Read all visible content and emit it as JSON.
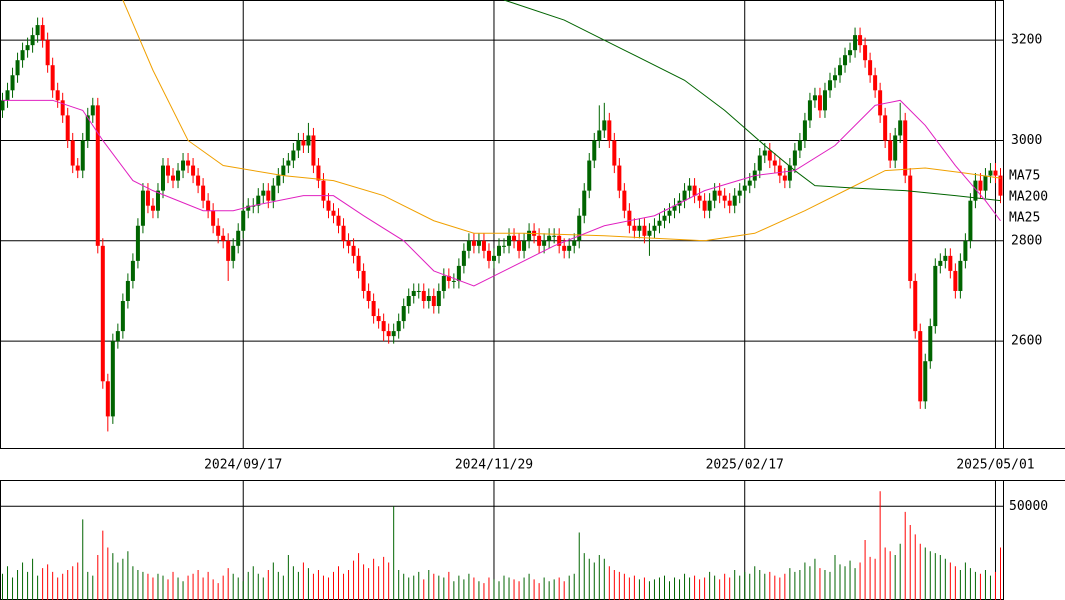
{
  "chart_data": {
    "type": "candlestick",
    "categories": [
      null,
      null,
      null,
      null,
      null,
      null,
      null,
      null,
      null,
      null,
      null,
      null,
      null,
      null,
      null,
      null,
      null,
      null,
      null,
      null,
      null,
      null,
      null,
      null,
      null,
      null,
      null,
      null,
      null,
      null,
      null,
      null,
      null,
      null,
      null,
      null,
      null,
      null,
      null,
      null,
      null,
      null,
      null,
      null,
      null,
      null,
      null,
      null,
      "2024/09/17",
      null,
      null,
      null,
      null,
      null,
      null,
      null,
      null,
      null,
      null,
      null,
      null,
      null,
      null,
      null,
      null,
      null,
      null,
      null,
      null,
      null,
      null,
      null,
      null,
      null,
      null,
      null,
      null,
      null,
      null,
      null,
      null,
      null,
      null,
      null,
      null,
      null,
      null,
      null,
      null,
      null,
      null,
      null,
      null,
      null,
      null,
      null,
      null,
      null,
      "2024/11/29",
      null,
      null,
      null,
      null,
      null,
      null,
      null,
      null,
      null,
      null,
      null,
      null,
      null,
      null,
      null,
      null,
      null,
      null,
      null,
      null,
      null,
      null,
      null,
      null,
      null,
      null,
      null,
      null,
      null,
      null,
      null,
      null,
      null,
      null,
      null,
      null,
      null,
      null,
      null,
      null,
      null,
      null,
      null,
      null,
      null,
      null,
      null,
      null,
      null,
      "2025/02/17",
      null,
      null,
      null,
      null,
      null,
      null,
      null,
      null,
      null,
      null,
      null,
      null,
      null,
      null,
      null,
      null,
      null,
      null,
      null,
      null,
      null,
      null,
      null,
      null,
      null,
      null,
      null,
      null,
      null,
      null,
      null,
      null,
      null,
      null,
      null,
      null,
      null,
      null,
      null,
      null,
      null,
      null,
      null,
      null,
      null,
      null,
      null,
      null,
      null,
      "2025/05/01",
      null
    ],
    "open": [
      3060,
      3080,
      3100,
      3130,
      3160,
      3180,
      3190,
      3210,
      3230,
      3200,
      3150,
      3100,
      3080,
      3050,
      3000,
      2950,
      2940,
      3000,
      3050,
      3070,
      2790,
      2520,
      2450,
      2600,
      2620,
      2680,
      2720,
      2760,
      2830,
      2900,
      2870,
      2860,
      2900,
      2950,
      2930,
      2920,
      2940,
      2960,
      2950,
      2930,
      2910,
      2880,
      2860,
      2830,
      2810,
      2800,
      2760,
      2790,
      2820,
      2860,
      2870,
      2870,
      2890,
      2900,
      2880,
      2910,
      2930,
      2950,
      2960,
      2980,
      3000,
      2990,
      3010,
      2950,
      2920,
      2880,
      2860,
      2850,
      2830,
      2800,
      2790,
      2770,
      2740,
      2700,
      2680,
      2650,
      2640,
      2620,
      2610,
      2620,
      2640,
      2670,
      2690,
      2700,
      2700,
      2680,
      2690,
      2670,
      2700,
      2730,
      2720,
      2720,
      2750,
      2780,
      2800,
      2790,
      2800,
      2780,
      2760,
      2770,
      2790,
      2790,
      2810,
      2800,
      2780,
      2800,
      2820,
      2810,
      2790,
      2800,
      2810,
      2810,
      2790,
      2780,
      2790,
      2800,
      2850,
      2900,
      2960,
      3000,
      3020,
      3040,
      3000,
      2950,
      2900,
      2860,
      2830,
      2820,
      2830,
      2810,
      2820,
      2830,
      2840,
      2850,
      2860,
      2870,
      2880,
      2900,
      2910,
      2890,
      2880,
      2860,
      2880,
      2900,
      2890,
      2880,
      2870,
      2890,
      2900,
      2910,
      2920,
      2940,
      2970,
      2980,
      2960,
      2950,
      2930,
      2920,
      2950,
      2980,
      3000,
      3040,
      3080,
      3090,
      3060,
      3100,
      3120,
      3130,
      3150,
      3170,
      3180,
      3210,
      3190,
      3160,
      3130,
      3100,
      3050,
      3000,
      2960,
      3010,
      3040,
      2930,
      2720,
      2620,
      2480,
      2560,
      2630,
      2750,
      2760,
      2770,
      2740,
      2700,
      2760,
      2800,
      2880,
      2920,
      2900,
      2930,
      2940,
      2930
    ],
    "high": [
      3095,
      3115,
      3145,
      3175,
      3195,
      3205,
      3225,
      3245,
      3245,
      3215,
      3165,
      3115,
      3095,
      3065,
      3015,
      2965,
      3015,
      3065,
      3085,
      3085,
      2805,
      2535,
      2615,
      2635,
      2695,
      2735,
      2775,
      2845,
      2915,
      2915,
      2885,
      2915,
      2965,
      2965,
      2945,
      2955,
      2975,
      2975,
      2965,
      2945,
      2925,
      2895,
      2875,
      2845,
      2825,
      2815,
      2805,
      2835,
      2875,
      2885,
      2885,
      2905,
      2915,
      2915,
      2925,
      2945,
      2965,
      2975,
      2995,
      3015,
      3015,
      3035,
      3025,
      2965,
      2935,
      2895,
      2875,
      2865,
      2845,
      2815,
      2805,
      2785,
      2755,
      2715,
      2695,
      2665,
      2655,
      2635,
      2635,
      2655,
      2685,
      2705,
      2715,
      2715,
      2715,
      2705,
      2705,
      2715,
      2745,
      2745,
      2735,
      2765,
      2795,
      2815,
      2815,
      2815,
      2815,
      2795,
      2785,
      2805,
      2805,
      2825,
      2825,
      2815,
      2815,
      2835,
      2835,
      2825,
      2815,
      2825,
      2825,
      2825,
      2805,
      2805,
      2815,
      2865,
      2915,
      2975,
      3015,
      3070,
      3075,
      3055,
      3015,
      2965,
      2915,
      2875,
      2845,
      2845,
      2845,
      2835,
      2845,
      2855,
      2865,
      2875,
      2885,
      2895,
      2915,
      2925,
      2925,
      2905,
      2895,
      2895,
      2915,
      2915,
      2905,
      2895,
      2905,
      2915,
      2925,
      2935,
      2955,
      2985,
      2995,
      2995,
      2975,
      2965,
      2945,
      2965,
      2995,
      3015,
      3055,
      3095,
      3105,
      3105,
      3115,
      3135,
      3145,
      3165,
      3185,
      3195,
      3225,
      3225,
      3205,
      3175,
      3145,
      3115,
      3065,
      3015,
      3025,
      3075,
      3055,
      2945,
      2735,
      2635,
      2575,
      2645,
      2765,
      2775,
      2785,
      2785,
      2755,
      2775,
      2815,
      2895,
      2935,
      2935,
      2945,
      2955,
      2955,
      2945
    ],
    "low": [
      3045,
      3065,
      3085,
      3115,
      3145,
      3165,
      3175,
      3195,
      3185,
      3135,
      3085,
      3065,
      3035,
      2985,
      2935,
      2925,
      2925,
      2985,
      3035,
      2775,
      2505,
      2420,
      2435,
      2585,
      2605,
      2665,
      2705,
      2745,
      2815,
      2855,
      2845,
      2845,
      2885,
      2915,
      2905,
      2905,
      2925,
      2935,
      2915,
      2895,
      2865,
      2845,
      2815,
      2795,
      2785,
      2720,
      2745,
      2775,
      2805,
      2845,
      2855,
      2855,
      2875,
      2865,
      2865,
      2895,
      2915,
      2935,
      2945,
      2965,
      2975,
      2975,
      2935,
      2905,
      2865,
      2845,
      2835,
      2815,
      2785,
      2775,
      2755,
      2725,
      2685,
      2665,
      2635,
      2625,
      2600,
      2595,
      2595,
      2605,
      2625,
      2655,
      2675,
      2685,
      2665,
      2665,
      2655,
      2655,
      2685,
      2705,
      2705,
      2705,
      2735,
      2765,
      2775,
      2775,
      2765,
      2745,
      2745,
      2755,
      2775,
      2775,
      2785,
      2765,
      2765,
      2785,
      2795,
      2775,
      2775,
      2785,
      2795,
      2775,
      2765,
      2765,
      2775,
      2785,
      2835,
      2885,
      2945,
      2985,
      3005,
      2985,
      2935,
      2885,
      2845,
      2815,
      2805,
      2805,
      2795,
      2770,
      2805,
      2815,
      2825,
      2835,
      2845,
      2855,
      2865,
      2885,
      2875,
      2865,
      2845,
      2845,
      2865,
      2875,
      2865,
      2855,
      2855,
      2875,
      2885,
      2895,
      2905,
      2925,
      2955,
      2945,
      2935,
      2915,
      2905,
      2905,
      2935,
      2965,
      2985,
      3025,
      3065,
      3045,
      3045,
      3085,
      3105,
      3115,
      3135,
      3155,
      3165,
      3175,
      3145,
      3115,
      3085,
      3035,
      2985,
      2945,
      2945,
      2995,
      2915,
      2705,
      2605,
      2465,
      2465,
      2545,
      2615,
      2735,
      2745,
      2725,
      2685,
      2685,
      2745,
      2785,
      2865,
      2885,
      2885,
      2915,
      2915,
      2875
    ],
    "close": [
      3080,
      3100,
      3130,
      3160,
      3180,
      3190,
      3210,
      3230,
      3200,
      3150,
      3100,
      3080,
      3050,
      3000,
      2950,
      2940,
      3000,
      3050,
      3070,
      2790,
      2520,
      2450,
      2600,
      2620,
      2680,
      2720,
      2760,
      2830,
      2900,
      2870,
      2860,
      2900,
      2950,
      2930,
      2920,
      2940,
      2960,
      2950,
      2930,
      2910,
      2880,
      2860,
      2830,
      2810,
      2800,
      2760,
      2790,
      2820,
      2860,
      2870,
      2870,
      2890,
      2900,
      2880,
      2910,
      2930,
      2950,
      2960,
      2980,
      3000,
      2990,
      3010,
      2950,
      2920,
      2880,
      2860,
      2850,
      2830,
      2800,
      2790,
      2770,
      2740,
      2700,
      2680,
      2650,
      2640,
      2620,
      2610,
      2620,
      2640,
      2670,
      2690,
      2700,
      2700,
      2680,
      2690,
      2670,
      2700,
      2730,
      2720,
      2720,
      2750,
      2780,
      2800,
      2790,
      2800,
      2780,
      2760,
      2770,
      2790,
      2790,
      2810,
      2800,
      2780,
      2800,
      2820,
      2810,
      2790,
      2800,
      2810,
      2810,
      2790,
      2780,
      2790,
      2800,
      2850,
      2900,
      2960,
      3000,
      3020,
      3040,
      3000,
      2950,
      2900,
      2860,
      2830,
      2820,
      2830,
      2810,
      2820,
      2830,
      2840,
      2850,
      2860,
      2870,
      2880,
      2900,
      2910,
      2890,
      2880,
      2860,
      2880,
      2900,
      2890,
      2880,
      2870,
      2890,
      2900,
      2910,
      2920,
      2940,
      2970,
      2980,
      2960,
      2950,
      2930,
      2920,
      2950,
      2980,
      3000,
      3040,
      3080,
      3090,
      3060,
      3100,
      3120,
      3130,
      3150,
      3170,
      3180,
      3210,
      3190,
      3160,
      3130,
      3100,
      3050,
      3000,
      2960,
      3010,
      3040,
      2930,
      2720,
      2620,
      2480,
      2560,
      2630,
      2750,
      2760,
      2770,
      2740,
      2700,
      2760,
      2800,
      2880,
      2920,
      2900,
      2930,
      2940,
      2930,
      2890
    ],
    "volume": [
      14000,
      18000,
      12000,
      16000,
      20000,
      15000,
      22000,
      13000,
      17000,
      19000,
      15000,
      12000,
      14000,
      16000,
      18000,
      20000,
      43000,
      15000,
      13000,
      24000,
      37000,
      28000,
      25000,
      20000,
      22000,
      26000,
      18000,
      16000,
      15000,
      14000,
      12000,
      14000,
      13000,
      11000,
      15000,
      12000,
      10000,
      13000,
      14000,
      16000,
      12000,
      15000,
      11000,
      9000,
      13000,
      17000,
      14000,
      12000,
      10000,
      15000,
      18000,
      14000,
      12000,
      16000,
      20000,
      15000,
      13000,
      24000,
      18000,
      15000,
      20000,
      17000,
      14000,
      16000,
      13000,
      12000,
      15000,
      18000,
      14000,
      16000,
      21000,
      25000,
      19000,
      17000,
      22000,
      18000,
      23000,
      20000,
      50000,
      16000,
      14000,
      12000,
      13000,
      15000,
      11000,
      16000,
      14000,
      13000,
      12000,
      15000,
      10000,
      13000,
      11000,
      14000,
      12000,
      10000,
      9000,
      12000,
      11000,
      10000,
      13000,
      12000,
      11000,
      10000,
      12000,
      14000,
      11000,
      9000,
      12000,
      10000,
      11000,
      12000,
      10000,
      13000,
      14000,
      36000,
      25000,
      22000,
      20000,
      24000,
      22000,
      18000,
      16000,
      15000,
      14000,
      12000,
      13000,
      11000,
      12000,
      10000,
      11000,
      12000,
      13000,
      10000,
      12000,
      11000,
      14000,
      12000,
      13000,
      11000,
      12000,
      15000,
      13000,
      11000,
      14000,
      12000,
      16000,
      13000,
      15000,
      14000,
      18000,
      16000,
      14000,
      15000,
      13000,
      12000,
      14000,
      17000,
      15000,
      16000,
      20000,
      18000,
      22000,
      17000,
      16000,
      15000,
      24000,
      19000,
      18000,
      21000,
      17000,
      20000,
      32000,
      23000,
      22000,
      58000,
      28000,
      26000,
      24000,
      30000,
      47000,
      40000,
      35000,
      30000,
      28000,
      26000,
      25000,
      24000,
      22000,
      20000,
      18000,
      16000,
      20000,
      17000,
      15000,
      14000,
      16000,
      13000,
      15000,
      28000
    ],
    "up_color": "#006400",
    "down_color": "#ff0000",
    "moving_averages": [
      {
        "name": "MA75",
        "color": "#f0a000",
        "x": [
          24,
          30,
          37,
          44,
          56,
          66,
          76,
          86,
          94,
          104,
          120,
          130,
          140,
          150,
          160,
          170,
          176,
          184,
          192,
          199
        ],
        "values": [
          3280,
          3140,
          3000,
          2950,
          2930,
          2920,
          2890,
          2840,
          2815,
          2815,
          2810,
          2805,
          2800,
          2815,
          2860,
          2910,
          2940,
          2945,
          2935,
          2925
        ]
      },
      {
        "name": "MA200",
        "color": "#006400",
        "x": [
          100,
          112,
          124,
          136,
          144,
          152,
          158,
          162,
          170,
          180,
          190,
          199
        ],
        "values": [
          3280,
          3240,
          3180,
          3120,
          3060,
          2990,
          2940,
          2910,
          2905,
          2900,
          2890,
          2880
        ]
      },
      {
        "name": "MA25",
        "color": "#e020c0",
        "x": [
          0,
          10,
          16,
          20,
          26,
          30,
          40,
          46,
          50,
          60,
          66,
          72,
          80,
          86,
          94,
          100,
          110,
          120,
          130,
          140,
          150,
          158,
          166,
          174,
          179,
          184,
          190,
          196,
          199
        ],
        "values": [
          3080,
          3080,
          3060,
          3000,
          2920,
          2900,
          2860,
          2860,
          2870,
          2890,
          2890,
          2850,
          2800,
          2740,
          2710,
          2740,
          2790,
          2830,
          2850,
          2900,
          2930,
          2940,
          2990,
          3070,
          3080,
          3030,
          2950,
          2880,
          2840
        ]
      }
    ],
    "ylim": [
      2387,
      3280
    ],
    "yticks": [
      2600,
      2800,
      3000,
      3200
    ],
    "volume_ylim": [
      0,
      64000
    ],
    "volume_yticks": [
      50000
    ],
    "grid": true
  }
}
